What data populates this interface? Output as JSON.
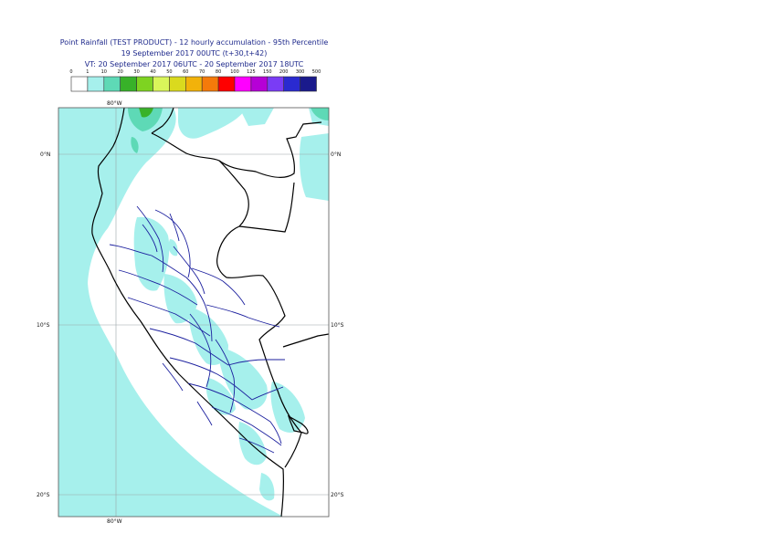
{
  "title_lines": [
    "Point Rainfall (TEST PRODUCT) - 12 hourly accumulation - 95th Percentile",
    "19 September 2017 00UTC (t+30,t+42)",
    "VT: 20 September 2017 06UTC - 20 September 2017 18UTC"
  ],
  "legend": {
    "thresholds": [
      "0",
      "1",
      "10",
      "20",
      "30",
      "40",
      "50",
      "60",
      "70",
      "80",
      "100",
      "125",
      "150",
      "200",
      "300",
      "500"
    ],
    "colors": [
      "#ffffff",
      "#a6f0ec",
      "#5ed9b6",
      "#38b229",
      "#7ed321",
      "#d9f55a",
      "#dada1e",
      "#f2b20a",
      "#f57a0a",
      "#ff0000",
      "#ff00ff",
      "#b600d6",
      "#7a3cf5",
      "#2a2ad0",
      "#1a1a8c"
    ]
  },
  "map": {
    "lon_labels": {
      "top": "80°W",
      "bottom": "80°W"
    },
    "lat_labels": [
      "0°N",
      "10°S",
      "20°S"
    ],
    "colors": {
      "sea_rain": "#a6f0ec",
      "heavy_rain": "#5ed9b6",
      "peak_rain": "#38b229",
      "coast": "#000000",
      "regions": "#1b1f9e",
      "grid": "#9aa5a8"
    }
  }
}
